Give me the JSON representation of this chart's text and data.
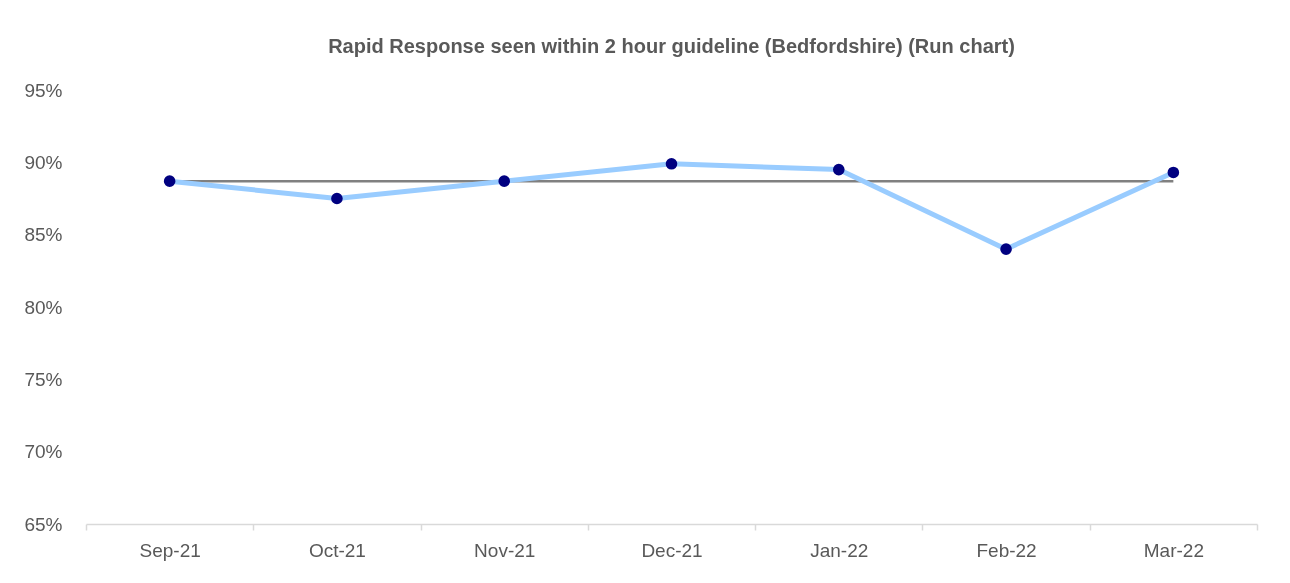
{
  "chart_data": {
    "type": "line",
    "title": "Rapid Response seen within 2 hour guideline (Bedfordshire) (Run chart)",
    "categories": [
      "Sep-21",
      "Oct-21",
      "Nov-21",
      "Dec-21",
      "Jan-22",
      "Feb-22",
      "Mar-22"
    ],
    "series": [
      {
        "color": "#99ccff",
        "marker": "none",
        "values": [
          88.7,
          87.5,
          88.7,
          89.9,
          89.5,
          84.0,
          89.3
        ]
      },
      {
        "type": "scatter",
        "color": "#000080",
        "marker": "circle",
        "values": [
          88.7,
          87.5,
          88.7,
          89.9,
          89.5,
          84.0,
          89.3
        ]
      }
    ],
    "ylim": [
      65,
      95
    ],
    "yticks": [
      {
        "value": 65,
        "label": "65%"
      },
      {
        "value": 70,
        "label": "70%"
      },
      {
        "value": 75,
        "label": "75%"
      },
      {
        "value": 80,
        "label": "80%"
      },
      {
        "value": 85,
        "label": "85%"
      },
      {
        "value": 90,
        "label": "90%"
      },
      {
        "value": 95,
        "label": "95%"
      }
    ],
    "ref_lines": [
      {
        "axis": "y",
        "value": 88.7,
        "color": "#808080"
      }
    ],
    "grid": false,
    "line_style": "solid"
  }
}
